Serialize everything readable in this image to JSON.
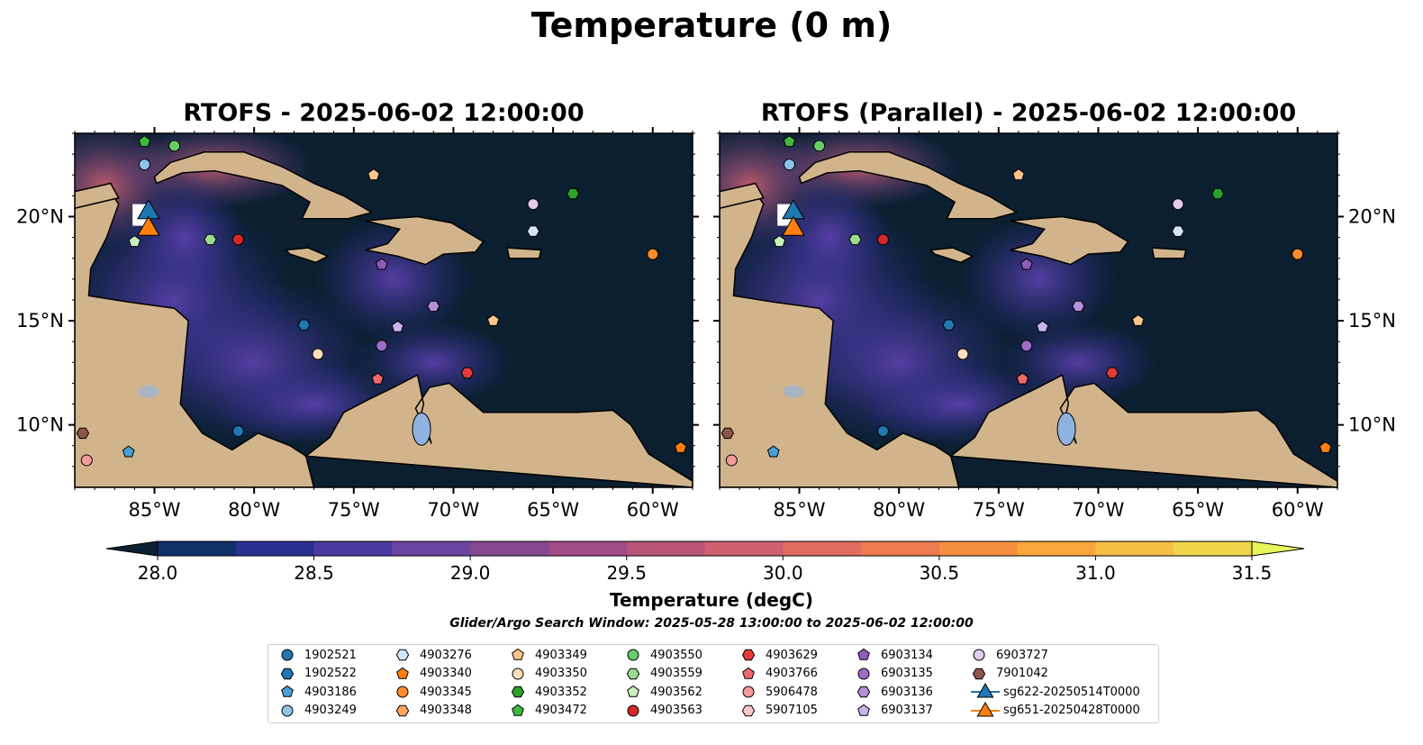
{
  "title": "Temperature (0 m)",
  "panels": [
    {
      "title": "RTOFS - 2025-06-02 12:00:00"
    },
    {
      "title": "RTOFS (Parallel) - 2025-06-02 12:00:00"
    }
  ],
  "map": {
    "lon_range": [
      -89,
      -58
    ],
    "lat_range": [
      7,
      24
    ],
    "lon_ticks": [
      "85°W",
      "80°W",
      "75°W",
      "70°W",
      "65°W",
      "60°W"
    ],
    "lat_ticks": [
      "20°N",
      "15°N",
      "10°N"
    ],
    "ocean_color": "#0b1f30",
    "land_color": "#d2b48c",
    "warm_color": "#e26a5c",
    "mid_color": "#6b3fa0"
  },
  "colorbar": {
    "label": "Temperature (degC)",
    "ticks": [
      "28.0",
      "28.5",
      "29.0",
      "29.5",
      "30.0",
      "30.5",
      "31.0",
      "31.5"
    ],
    "range": [
      28.0,
      31.5
    ],
    "colors": [
      "#0b1f30",
      "#10306a",
      "#2a3090",
      "#4a3aa0",
      "#6a44a0",
      "#85478f",
      "#a04a86",
      "#b85478",
      "#cf6070",
      "#e06c60",
      "#ee7a50",
      "#f78f40",
      "#f9a63c",
      "#f5bf45",
      "#f0d44c",
      "#e6f55a"
    ]
  },
  "search_window": "Glider/Argo Search Window: 2025-05-28 13:00:00 to 2025-06-02 12:00:00",
  "legend": [
    {
      "id": "1902521",
      "marker": "circle",
      "color": "#1f77b4"
    },
    {
      "id": "1902522",
      "marker": "hexagon",
      "color": "#1f77b4"
    },
    {
      "id": "4903186",
      "marker": "pentagon",
      "color": "#4a9fd6"
    },
    {
      "id": "4903249",
      "marker": "circle",
      "color": "#8cc3ea"
    },
    {
      "id": "4903276",
      "marker": "hexagon",
      "color": "#cfe6f7"
    },
    {
      "id": "4903340",
      "marker": "pentagon",
      "color": "#ff7f0e"
    },
    {
      "id": "4903345",
      "marker": "circle",
      "color": "#ff8c2a"
    },
    {
      "id": "4903348",
      "marker": "hexagon",
      "color": "#ffa65c"
    },
    {
      "id": "4903349",
      "marker": "pentagon",
      "color": "#ffc58a"
    },
    {
      "id": "4903350",
      "marker": "circle",
      "color": "#ffdcbc"
    },
    {
      "id": "4903352",
      "marker": "hexagon",
      "color": "#2ca02c"
    },
    {
      "id": "4903472",
      "marker": "pentagon",
      "color": "#3fb83f"
    },
    {
      "id": "4903550",
      "marker": "circle",
      "color": "#66cc66"
    },
    {
      "id": "4903559",
      "marker": "hexagon",
      "color": "#99dd8c"
    },
    {
      "id": "4903562",
      "marker": "pentagon",
      "color": "#c8f0bf"
    },
    {
      "id": "4903563",
      "marker": "circle",
      "color": "#d62728"
    },
    {
      "id": "4903629",
      "marker": "hexagon",
      "color": "#e03a3a"
    },
    {
      "id": "4903766",
      "marker": "pentagon",
      "color": "#ee6a6a"
    },
    {
      "id": "5906478",
      "marker": "circle",
      "color": "#f59a9a"
    },
    {
      "id": "5907105",
      "marker": "hexagon",
      "color": "#fbc7c7"
    },
    {
      "id": "6903134",
      "marker": "pentagon",
      "color": "#8e5bb8"
    },
    {
      "id": "6903135",
      "marker": "circle",
      "color": "#9d6cc8"
    },
    {
      "id": "6903136",
      "marker": "hexagon",
      "color": "#b48fdc"
    },
    {
      "id": "6903137",
      "marker": "pentagon",
      "color": "#cbb2ec"
    },
    {
      "id": "6903727",
      "marker": "circle",
      "color": "#e2c9f2"
    },
    {
      "id": "7901042",
      "marker": "hexagon",
      "color": "#8c564b"
    },
    {
      "id": "sg622-20250514T0000",
      "marker": "triangle",
      "color": "#1f77b4"
    },
    {
      "id": "sg651-20250428T0000",
      "marker": "triangle",
      "color": "#ff7f0e"
    }
  ],
  "floats": [
    {
      "id": "4903472",
      "lon": -85.5,
      "lat": 23.6
    },
    {
      "id": "4903550",
      "lon": -84.0,
      "lat": 23.4
    },
    {
      "id": "4903249",
      "lon": -85.5,
      "lat": 22.5
    },
    {
      "id": "4903349",
      "lon": -74.0,
      "lat": 22.0
    },
    {
      "id": "4903352",
      "lon": -64.0,
      "lat": 21.1
    },
    {
      "id": "6903727",
      "lon": -66.0,
      "lat": 20.6
    },
    {
      "id": "4903276",
      "lon": -66.0,
      "lat": 19.3
    },
    {
      "id": "4903562",
      "lon": -86.0,
      "lat": 18.8
    },
    {
      "id": "4903559",
      "lon": -82.2,
      "lat": 18.9
    },
    {
      "id": "4903563",
      "lon": -80.8,
      "lat": 18.9
    },
    {
      "id": "4903345",
      "lon": -60.0,
      "lat": 18.2
    },
    {
      "id": "6903134",
      "lon": -73.6,
      "lat": 17.7
    },
    {
      "id": "6903136",
      "lon": -71.0,
      "lat": 15.7
    },
    {
      "id": "4903349",
      "lon": -68.0,
      "lat": 15.0
    },
    {
      "id": "1902522",
      "lon": -77.5,
      "lat": 14.8
    },
    {
      "id": "6903137",
      "lon": -72.8,
      "lat": 14.7
    },
    {
      "id": "6903135",
      "lon": -73.6,
      "lat": 13.8
    },
    {
      "id": "4903350",
      "lon": -76.8,
      "lat": 13.4
    },
    {
      "id": "4903766",
      "lon": -73.8,
      "lat": 12.2
    },
    {
      "id": "4903629",
      "lon": -69.3,
      "lat": 12.5
    },
    {
      "id": "1902521",
      "lon": -80.8,
      "lat": 9.7
    },
    {
      "id": "7901042",
      "lon": -88.6,
      "lat": 9.6
    },
    {
      "id": "4903186",
      "lon": -86.3,
      "lat": 8.7
    },
    {
      "id": "5906478",
      "lon": -88.4,
      "lat": 8.3
    },
    {
      "id": "4903340",
      "lon": -58.6,
      "lat": 8.9
    }
  ],
  "gliders": [
    {
      "id": "sg622-20250514T0000",
      "lon": -85.3,
      "lat": 20.2
    },
    {
      "id": "sg651-20250428T0000",
      "lon": -85.3,
      "lat": 19.4
    }
  ]
}
